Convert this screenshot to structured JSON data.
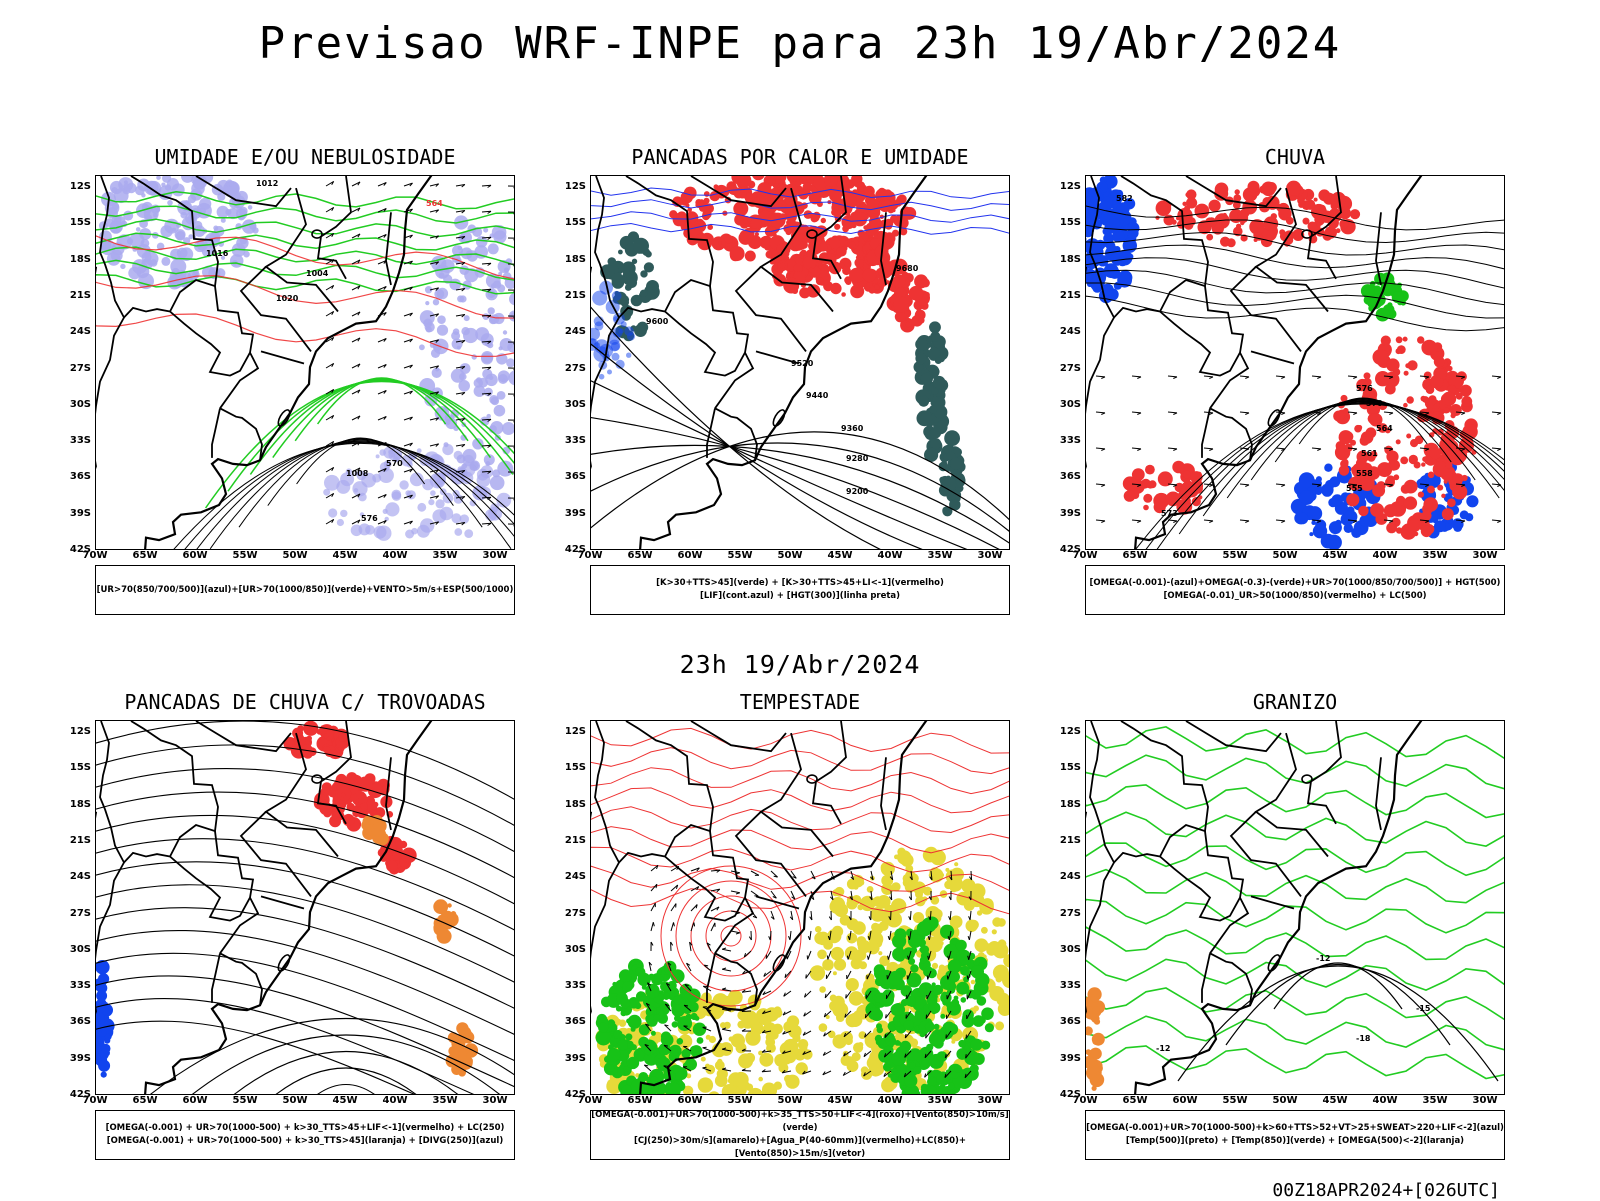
{
  "header": {
    "title": "Previsao WRF-INPE  para 23h 19/Abr/2024"
  },
  "mid_date": "23h 19/Abr/2024",
  "footer": {
    "run_stamp": "00Z18APR2024+[026UTC]"
  },
  "axes": {
    "lat_ticks": [
      "12S",
      "15S",
      "18S",
      "21S",
      "24S",
      "27S",
      "30S",
      "33S",
      "36S",
      "39S",
      "42S"
    ],
    "lon_ticks": [
      "70W",
      "65W",
      "60W",
      "55W",
      "50W",
      "45W",
      "40W",
      "35W",
      "30W"
    ]
  },
  "colors": {
    "humidity_blue": "#aaaaee",
    "green_contour": "#22cc22",
    "red_contour": "#ee3333",
    "red_fill": "#ee3333",
    "blue_fill": "#1144ee",
    "teal_fill": "#2f5a5a",
    "yellow_fill": "#e6d93a",
    "green_fill": "#17c217",
    "orange_fill": "#ee8833",
    "coast_black": "#000000"
  },
  "panels": [
    {
      "id": "umidade",
      "title": "UMIDADE E/OU NEBULOSIDADE",
      "legend": [
        "[UR>70(850/700/500)](azul)+[UR>70(1000/850)](verde)+VENTO>5m/s+ESP(500/1000)"
      ],
      "contour_labels": [
        "1012",
        "1016",
        "1020",
        "1004",
        "1008",
        "576",
        "570",
        "564"
      ]
    },
    {
      "id": "pancadas-calor",
      "title": "PANCADAS POR CALOR E UMIDADE",
      "legend": [
        "[K>30+TTS>45](verde) + [K>30+TTS>45+LI<-1](vermelho)",
        "[LIF](cont.azul) + [HGT(300)](linha preta)"
      ],
      "contour_labels": [
        "9680",
        "9600",
        "9520",
        "9440",
        "9360",
        "9280",
        "9200"
      ]
    },
    {
      "id": "chuva",
      "title": "CHUVA",
      "legend": [
        "[OMEGA(-0.001)-(azul)+OMEGA(-0.3)-(verde)+UR>70(1000/850/700/500)] + HGT(500)",
        "[OMEGA(-0.01)_UR>50(1000/850)(vermelho) + LC(500)"
      ],
      "contour_labels": [
        "582",
        "576",
        "570",
        "564",
        "561",
        "558",
        "555",
        "573"
      ]
    },
    {
      "id": "trovoadas",
      "title": "PANCADAS DE CHUVA C/ TROVOADAS",
      "legend": [
        "[OMEGA(-0.001) + UR>70(1000-500) + k>30_TTS>45+LIF<-1](vermelho) + LC(250)",
        "[OMEGA(-0.001) + UR>70(1000-500) + k>30_TTS>45](laranja) + [DIVG(250)](azul)"
      ],
      "contour_labels": []
    },
    {
      "id": "tempestade",
      "title": "TEMPESTADE",
      "legend": [
        "[OMEGA(-0.001)+UR>70(1000-500)+k>35_TTS>50+LIF<-4](roxo)+[Vento(850)>10m/s](verde)",
        "[CJ(250)>30m/s](amarelo)+[Agua_P(40-60mm)](vermelho)+LC(850)+[Vento(850)>15m/s](vetor)"
      ],
      "contour_labels": []
    },
    {
      "id": "granizo",
      "title": "GRANIZO",
      "legend": [
        "[OMEGA(-0.001)+UR>70(1000-500)+k>60+TTS>52+VT>25+SWEAT>220+LIF<-2](azul)",
        "[Temp(500)](preto) + [Temp(850)](verde) + [OMEGA(500)<-2](laranja)"
      ],
      "contour_labels": [
        "-12",
        "-15",
        "-18",
        "-12"
      ]
    }
  ]
}
